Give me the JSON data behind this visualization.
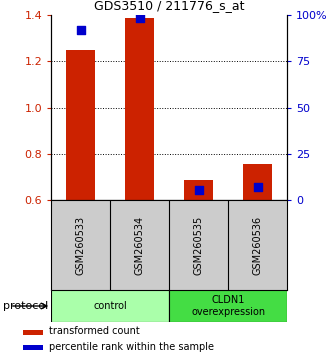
{
  "title": "GDS3510 / 211776_s_at",
  "samples": [
    "GSM260533",
    "GSM260534",
    "GSM260535",
    "GSM260536"
  ],
  "transformed_count": [
    1.25,
    1.385,
    0.685,
    0.755
  ],
  "percentile_rank": [
    1.335,
    1.385,
    0.645,
    0.655
  ],
  "ylim": [
    0.6,
    1.4
  ],
  "left_yticks": [
    0.6,
    0.8,
    1.0,
    1.2,
    1.4
  ],
  "right_positions": [
    0.6,
    0.8,
    1.0,
    1.2,
    1.4
  ],
  "right_labels": [
    "0",
    "25",
    "50",
    "75",
    "100%"
  ],
  "dotted_lines": [
    0.8,
    1.0,
    1.2
  ],
  "bar_color": "#cc2200",
  "dot_color": "#0000cc",
  "bar_width": 0.5,
  "groups": [
    {
      "label": "control",
      "samples_idx": [
        0,
        1
      ],
      "color": "#aaffaa"
    },
    {
      "label": "CLDN1\noverexpression",
      "samples_idx": [
        2,
        3
      ],
      "color": "#44dd44"
    }
  ],
  "legend_red": "transformed count",
  "legend_blue": "percentile rank within the sample",
  "protocol_label": "protocol",
  "ylabel_left_color": "#cc2200",
  "ylabel_right_color": "#0000cc",
  "background_color": "#ffffff",
  "tick_label_bg": "#cccccc",
  "title_fontsize": 9
}
